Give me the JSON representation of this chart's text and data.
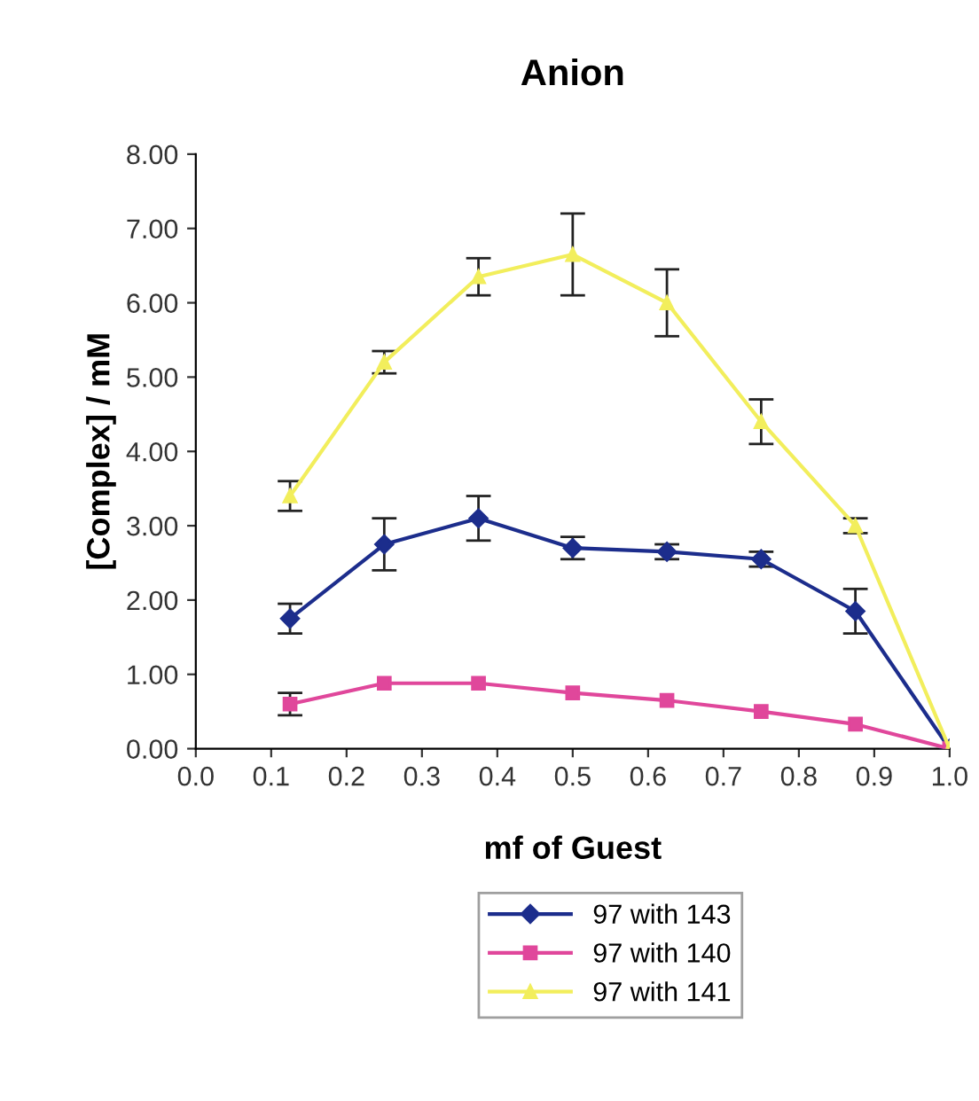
{
  "chart_data": {
    "type": "line",
    "title": "Anion",
    "xlabel": "mf of Guest",
    "ylabel": "[Complex] / mM",
    "x": [
      0.125,
      0.25,
      0.375,
      0.5,
      0.625,
      0.75,
      0.875,
      1.0
    ],
    "series": [
      {
        "name": "97 with 143",
        "color": "#1c2d8c",
        "marker": "diamond",
        "values": [
          1.75,
          2.75,
          3.1,
          2.7,
          2.65,
          2.55,
          1.85,
          0
        ],
        "errors": [
          0.2,
          0.35,
          0.3,
          0.15,
          0.1,
          0.1,
          0.3,
          null
        ]
      },
      {
        "name": "97 with 140",
        "color": "#e0479b",
        "marker": "square",
        "values": [
          0.6,
          0.88,
          0.88,
          0.75,
          0.65,
          0.5,
          0.33,
          0
        ],
        "errors": [
          0.15,
          null,
          null,
          null,
          null,
          null,
          null,
          null
        ]
      },
      {
        "name": "97 with 141",
        "color": "#f2ee5c",
        "marker": "triangle",
        "values": [
          3.4,
          5.2,
          6.35,
          6.65,
          6.0,
          4.4,
          3.0,
          0
        ],
        "errors": [
          0.2,
          0.15,
          0.25,
          0.55,
          0.45,
          0.3,
          0.1,
          null
        ]
      }
    ],
    "xlim": [
      0,
      1.0
    ],
    "ylim": [
      0,
      8
    ],
    "xticks": [
      {
        "value": 0,
        "label": "0.0"
      },
      0.1,
      0.2,
      0.3,
      0.4,
      0.5,
      0.6,
      0.7,
      0.8,
      0.9,
      {
        "value": 1,
        "label": "1.0"
      }
    ],
    "yticks": [
      {
        "value": 0,
        "label": "0.00"
      },
      {
        "value": 1,
        "label": "1.00"
      },
      {
        "value": 2,
        "label": "2.00"
      },
      {
        "value": 3,
        "label": "3.00"
      },
      {
        "value": 4,
        "label": "4.00"
      },
      {
        "value": 5,
        "label": "5.00"
      },
      {
        "value": 6,
        "label": "6.00"
      },
      {
        "value": 7,
        "label": "7.00"
      },
      {
        "value": 8,
        "label": "8.00"
      }
    ],
    "grid": false,
    "legend": "bottom",
    "line_style": "solid"
  }
}
